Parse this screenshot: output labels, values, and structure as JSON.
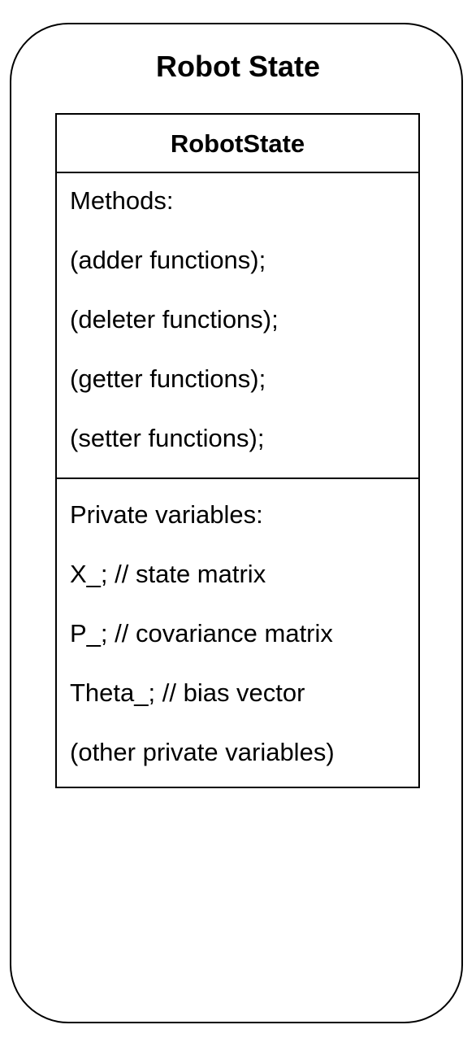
{
  "container": {
    "title": "Robot State"
  },
  "class_box": {
    "name": "RobotState",
    "methods": [
      "Methods:",
      "(adder functions);",
      "(deleter functions);",
      "(getter functions);",
      "(setter functions);"
    ],
    "variables": [
      "Private variables:",
      "X_; // state matrix",
      "P_; // covariance matrix",
      "Theta_; // bias vector",
      "(other private variables)"
    ]
  },
  "colors": {
    "stroke": "#000000",
    "fill": "#ffffff",
    "text": "#000000"
  }
}
